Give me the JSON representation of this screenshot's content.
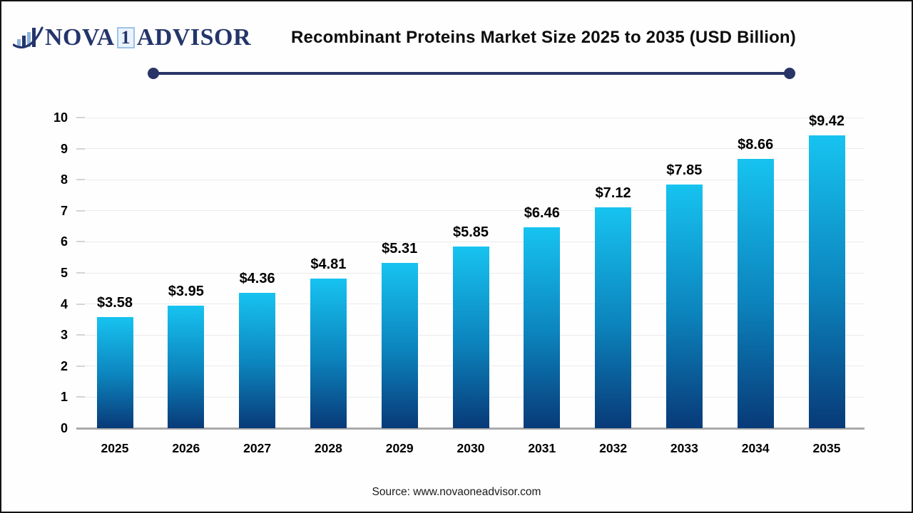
{
  "header": {
    "logo": {
      "nova": "NOVA",
      "one": "1",
      "advisor": "ADVISOR"
    },
    "title": "Recombinant Proteins Market Size 2025 to 2035 (USD Billion)"
  },
  "footer": {
    "source": "Source: www.novaoneadvisor.com"
  },
  "colors": {
    "brand_navy": "#24356B",
    "divider_navy": "#283566",
    "badge_blue": "#9DC3E6",
    "bar_top": "#17C3F0",
    "bar_bottom": "#083A78",
    "gridline": "#EBEBEB",
    "baseline": "#A9A9A9",
    "text": "#000000"
  },
  "chart_data": {
    "type": "bar",
    "title": "Recombinant Proteins Market Size 2025 to 2035 (USD Billion)",
    "categories": [
      "2025",
      "2026",
      "2027",
      "2028",
      "2029",
      "2030",
      "2031",
      "2032",
      "2033",
      "2034",
      "2035"
    ],
    "values": [
      3.58,
      3.95,
      4.36,
      4.81,
      5.31,
      5.85,
      6.46,
      7.12,
      7.85,
      8.66,
      9.42
    ],
    "labels": [
      "$3.58",
      "$3.95",
      "$4.36",
      "$4.81",
      "$5.31",
      "$5.85",
      "$6.46",
      "$7.12",
      "$7.85",
      "$8.66",
      "$9.42"
    ],
    "xlabel": "",
    "ylabel": "",
    "ylim": [
      0,
      10
    ],
    "ytick_step": 1,
    "grid": true,
    "legend": false,
    "unit": "USD Billion"
  }
}
